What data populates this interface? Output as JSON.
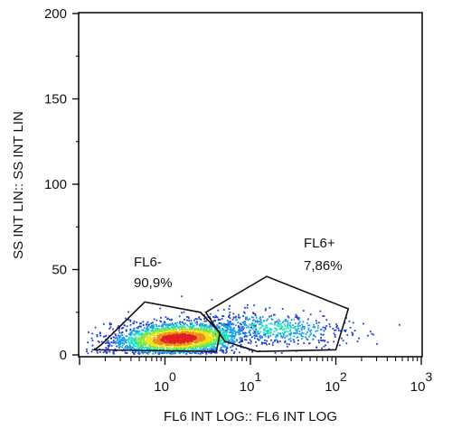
{
  "chart_data": {
    "type": "scatter",
    "subtype": "flow-cytometry density dot plot",
    "xlabel": "FL6 INT LOG:: FL6 INT LOG",
    "ylabel": "SS INT LIN:: SS INT LIN",
    "x_scale": "log",
    "xlim": [
      0.1,
      1000
    ],
    "x_ticks": [
      {
        "value": 1,
        "base": "10",
        "exp": "0"
      },
      {
        "value": 10,
        "base": "10",
        "exp": "1"
      },
      {
        "value": 100,
        "base": "10",
        "exp": "2"
      },
      {
        "value": 1000,
        "base": "10",
        "exp": "3"
      }
    ],
    "y_scale": "linear",
    "ylim": [
      0,
      200
    ],
    "y_ticks": [
      0,
      50,
      100,
      150,
      200
    ],
    "grid": false,
    "colormap": [
      "#1f3fd6",
      "#1aa0e8",
      "#1fe0c0",
      "#7ee83a",
      "#f2e21a",
      "#f08a1a",
      "#e02020"
    ],
    "gates": [
      {
        "name": "FL6-",
        "percent": "90,9%",
        "polygon": [
          [
            0.18,
            6
          ],
          [
            0.58,
            31
          ],
          [
            2.6,
            25
          ],
          [
            4.4,
            13
          ],
          [
            4.0,
            2
          ],
          [
            0.15,
            3
          ]
        ]
      },
      {
        "name": "FL6+",
        "percent": "7,86%",
        "polygon": [
          [
            3.0,
            25
          ],
          [
            15.5,
            46
          ],
          [
            140,
            27
          ],
          [
            100,
            3
          ],
          [
            12,
            2
          ],
          [
            5.0,
            8
          ]
        ]
      }
    ],
    "populations": [
      {
        "gate": "FL6-",
        "center_log10x": 0.15,
        "center_y": 10,
        "sd_log10x": 0.38,
        "sd_y": 4.8,
        "points": 2600
      },
      {
        "gate": "FL6+",
        "center_log10x": 1.25,
        "center_y": 16,
        "sd_log10x": 0.45,
        "sd_y": 5,
        "points": 520
      }
    ]
  }
}
